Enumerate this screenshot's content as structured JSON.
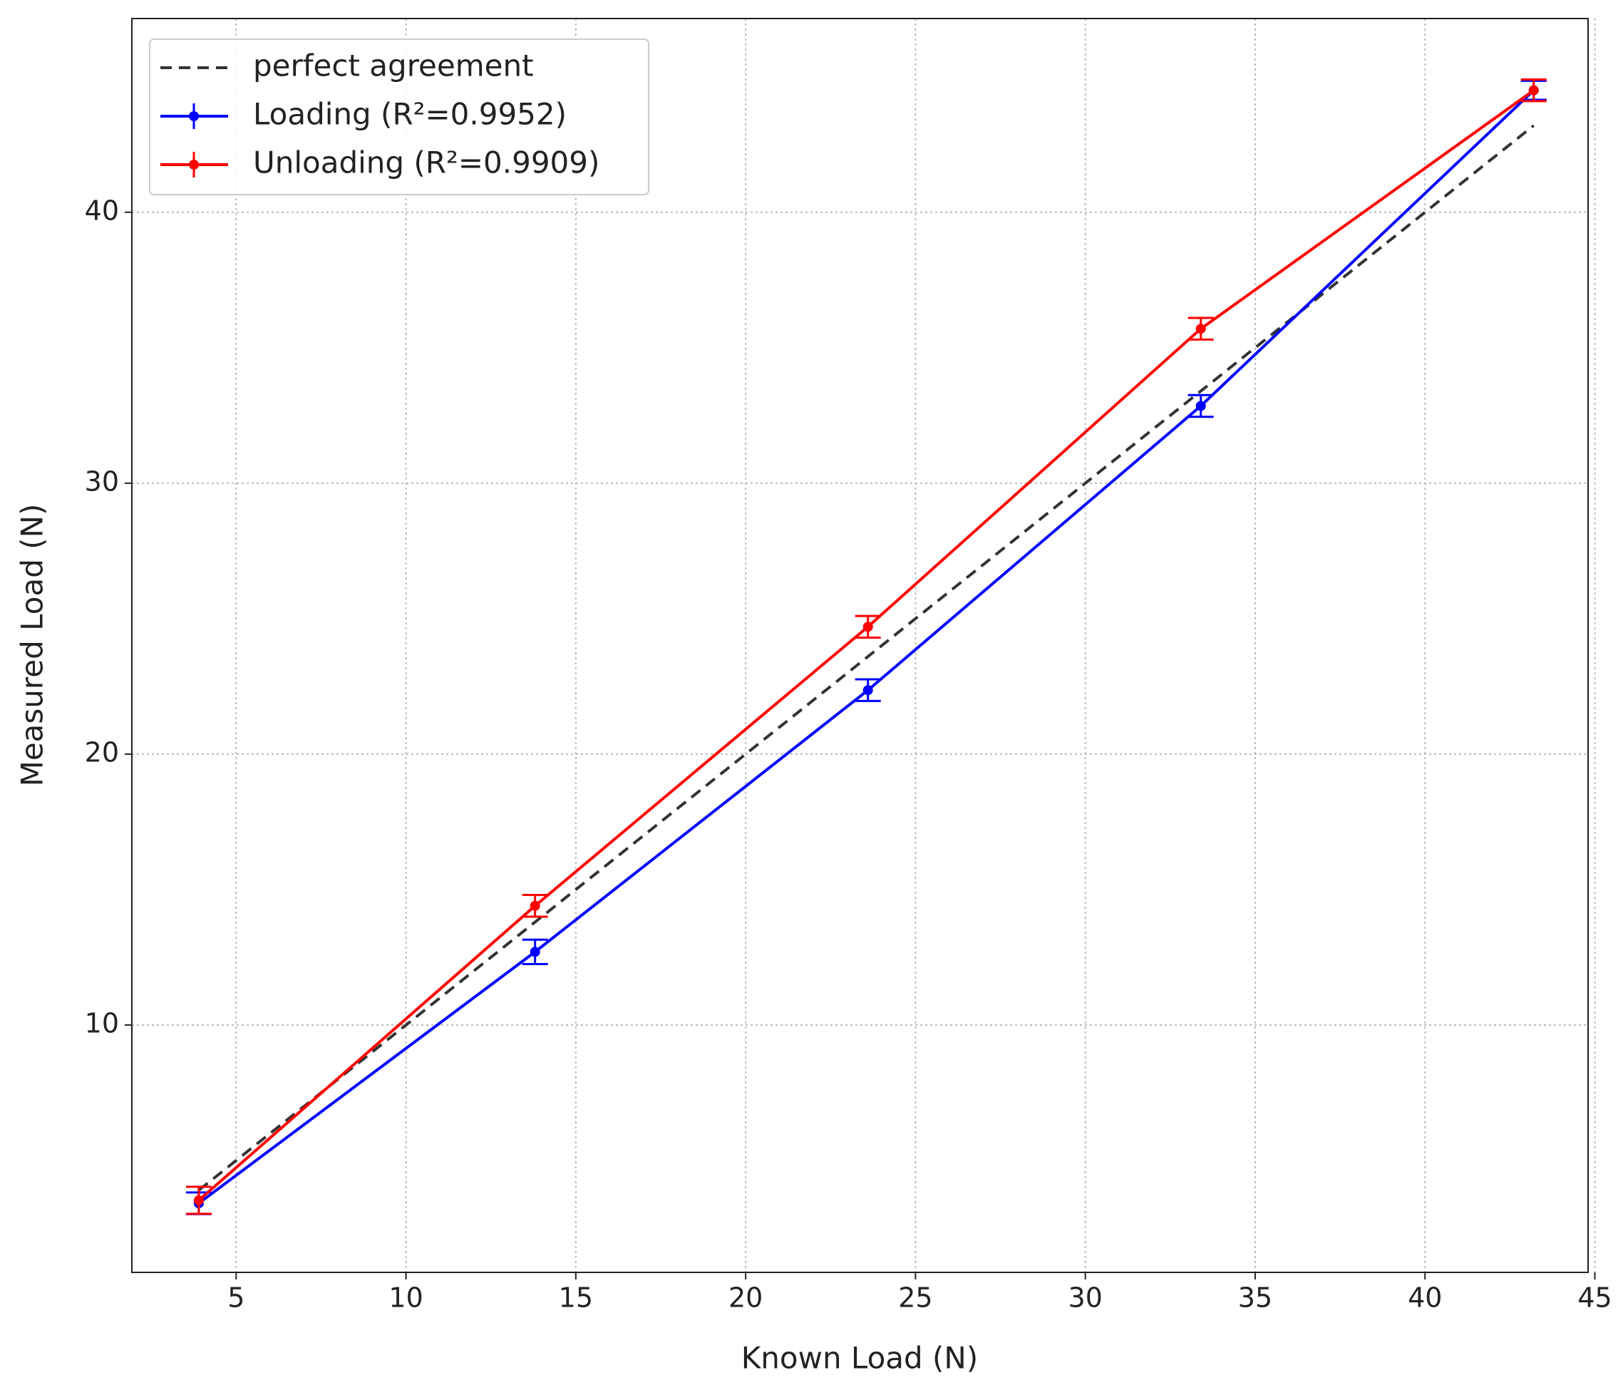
{
  "chart_data": {
    "type": "errorline",
    "x_label": "Known Load (N)",
    "y_label": "Measured Load (N)",
    "x": [
      3.9,
      13.8,
      23.6,
      33.4,
      43.2
    ],
    "series": [
      {
        "name": "perfect agreement",
        "color": "#333333",
        "style": "dashed",
        "x": [
          3.9,
          43.2
        ],
        "values": [
          3.9,
          43.2
        ]
      },
      {
        "name": "Loading (R²=0.9952)",
        "color": "#0000ff",
        "values": [
          3.42,
          12.7,
          22.36,
          32.85,
          44.5
        ],
        "errors": [
          0.4,
          0.45,
          0.4,
          0.4,
          0.35
        ]
      },
      {
        "name": "Unloading (R²=0.9909)",
        "color": "#ff0000",
        "values": [
          3.53,
          14.4,
          24.7,
          35.7,
          44.5
        ],
        "errors": [
          0.5,
          0.4,
          0.4,
          0.4,
          0.4
        ]
      }
    ],
    "xlim": [
      1.93,
      44.8
    ],
    "ylim": [
      0.87,
      47.15
    ],
    "xticks": [
      5,
      10,
      15,
      20,
      25,
      30,
      35,
      40,
      45
    ],
    "yticks": [
      10,
      20,
      30,
      40
    ],
    "grid": true,
    "legend": "upper left"
  }
}
